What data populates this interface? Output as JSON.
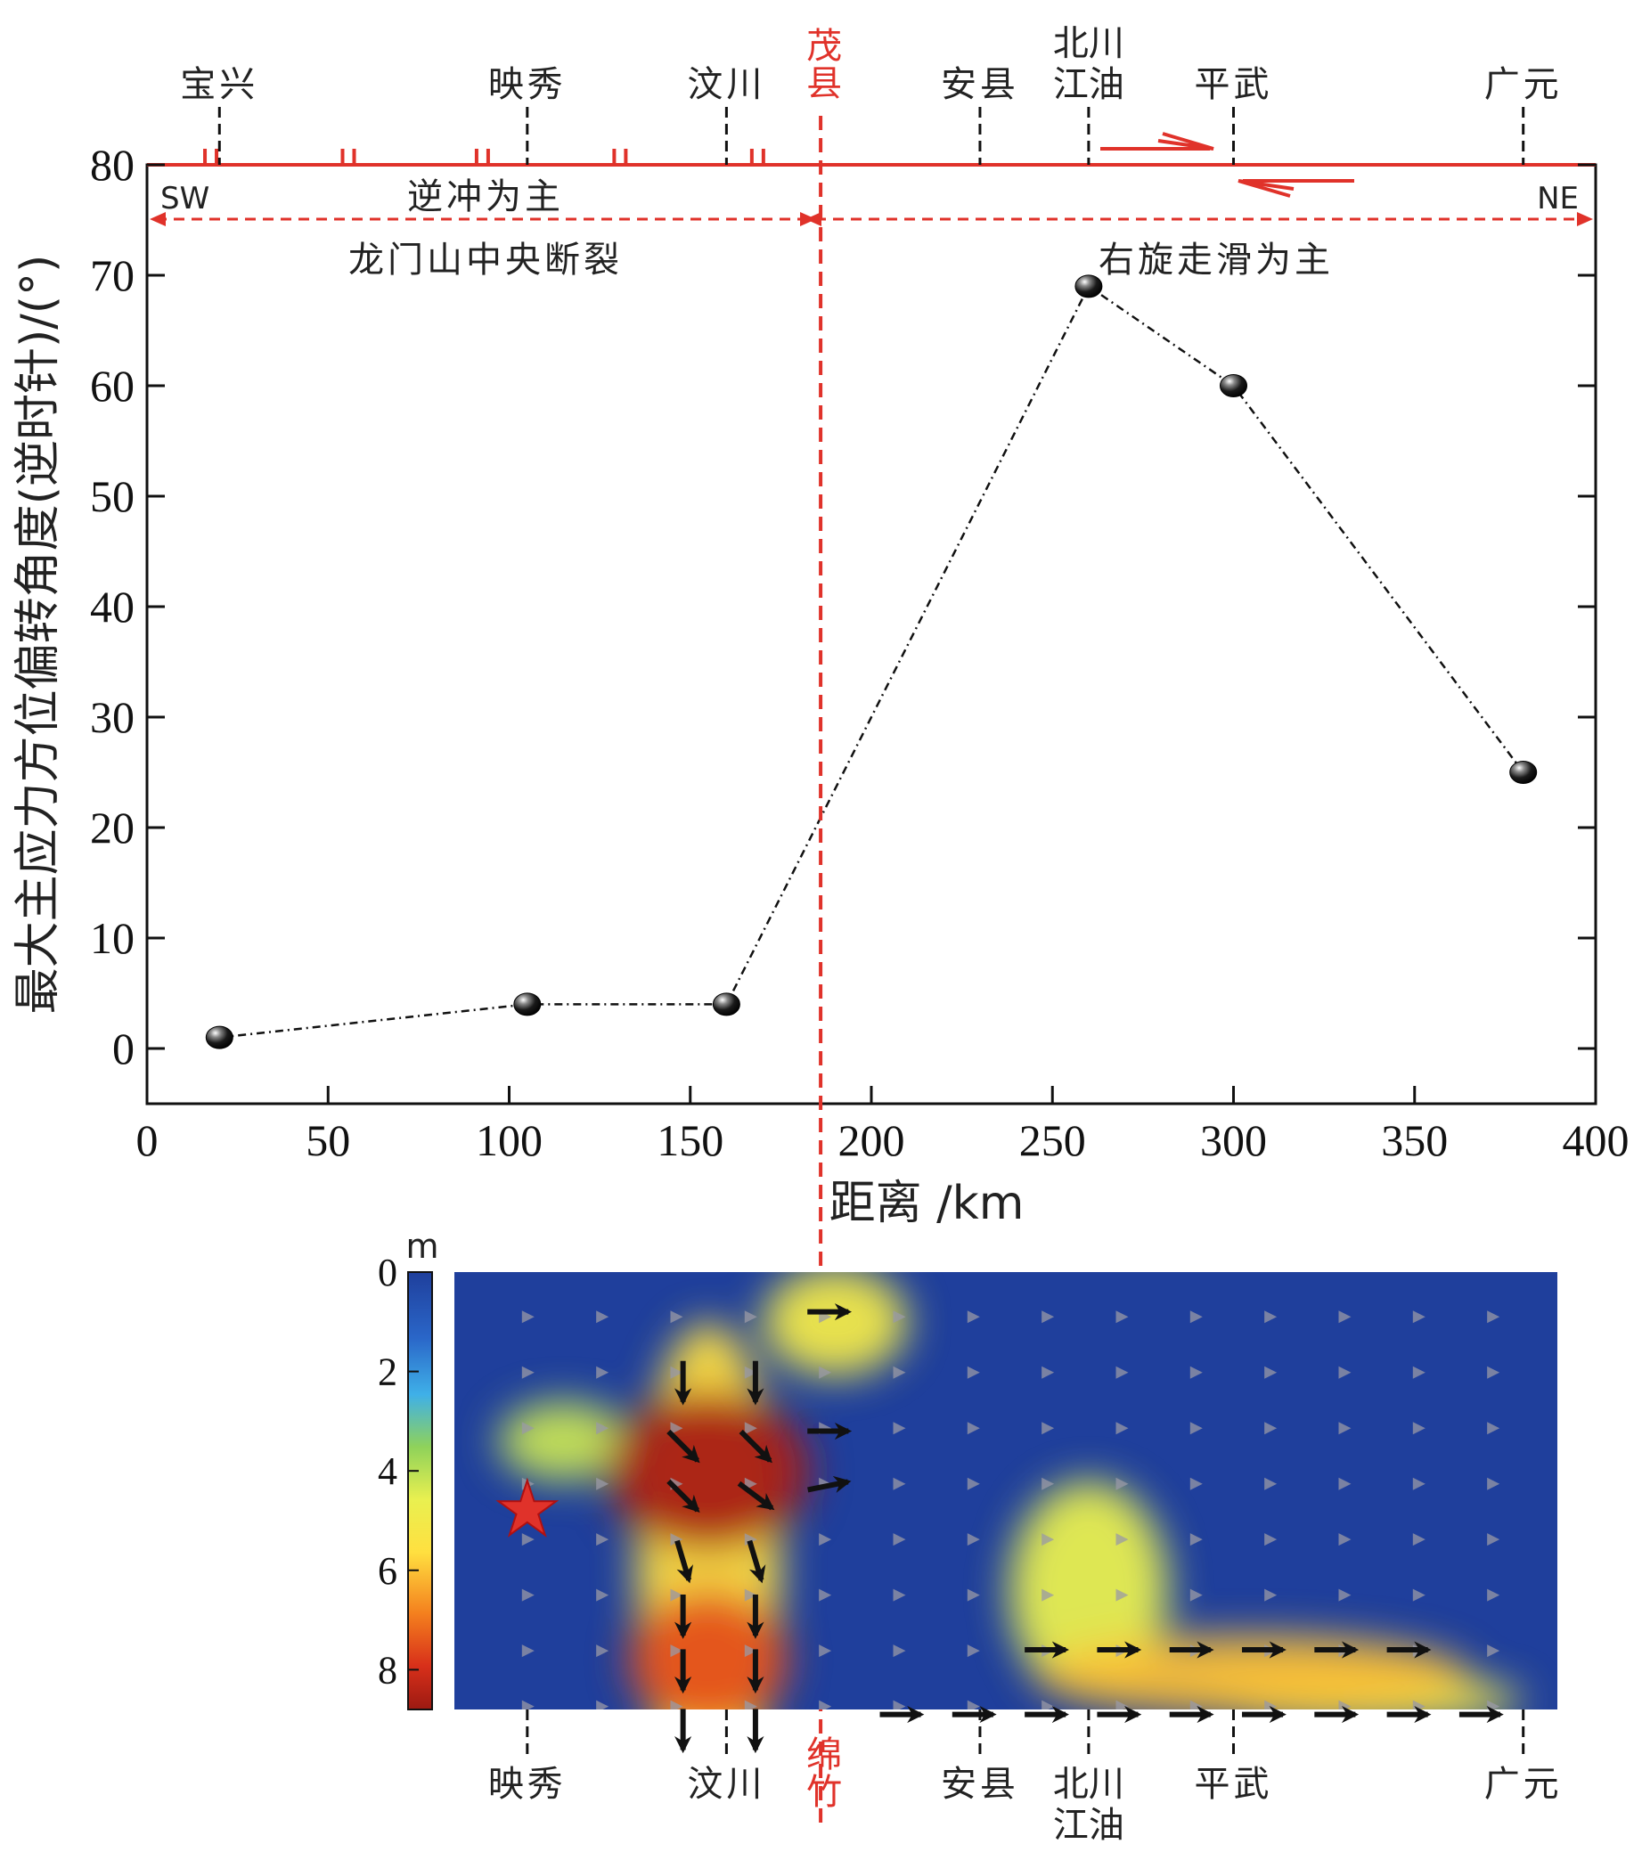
{
  "chart_data": [
    {
      "type": "line",
      "xlabel": "距离 /km",
      "ylabel": "最大主应力方位偏转角度(逆时针)/(°)",
      "xlim": [
        0,
        400
      ],
      "ylim": [
        -5,
        80
      ],
      "xticks": [
        0,
        50,
        100,
        150,
        200,
        250,
        300,
        350,
        400
      ],
      "yticks": [
        0,
        10,
        20,
        30,
        40,
        50,
        60,
        70,
        80
      ],
      "grid": false,
      "series": [
        {
          "values": [
            [
              20,
              1
            ],
            [
              105,
              4
            ],
            [
              160,
              4
            ],
            [
              260,
              69
            ],
            [
              300,
              60
            ],
            [
              380,
              25
            ]
          ]
        }
      ],
      "top_locations": [
        {
          "label": "宝兴",
          "x": 20
        },
        {
          "label": "映秀",
          "x": 105
        },
        {
          "label": "汶川",
          "x": 160
        },
        {
          "label": "茂县",
          "x": 186,
          "highlight": true
        },
        {
          "label": "安县",
          "x": 230
        },
        {
          "label": "北川江油",
          "x": 260
        },
        {
          "label": "平武",
          "x": 300
        },
        {
          "label": "广元",
          "x": 380
        }
      ],
      "divider_x": 186,
      "fault_ticks_x": [
        16,
        54,
        91,
        129,
        167
      ],
      "annotations": {
        "sw": "SW",
        "ne": "NE",
        "thrust": "逆冲为主",
        "fault": "龙门山中央断裂",
        "strike_slip": "右旋走滑为主"
      },
      "colors": {
        "accent": "#e0322a",
        "line": "#111111"
      }
    },
    {
      "type": "heatmap",
      "colorbar_unit": "m",
      "colorbar_ticks": [
        0,
        2,
        4,
        6,
        8
      ],
      "colorbar_range": [
        0,
        8.8
      ],
      "depth_range": [
        0,
        8.8
      ],
      "epicenter_x": 105,
      "epicenter_depth": 4.8,
      "bottom_locations": [
        {
          "label": "映秀",
          "x": 105
        },
        {
          "label": "汶川",
          "x": 160
        },
        {
          "label": "绵竹",
          "x": 186,
          "highlight": true
        },
        {
          "label": "安县",
          "x": 230
        },
        {
          "label": "北川江油",
          "x": 260
        },
        {
          "label": "平武",
          "x": 300
        },
        {
          "label": "广元",
          "x": 380
        }
      ],
      "slip_blobs": [
        {
          "x": 155,
          "depth": 4,
          "rx": 28,
          "rdepth": 1.6,
          "slip": 8.6
        },
        {
          "x": 155,
          "depth": 7.8,
          "rx": 22,
          "rdepth": 1.4,
          "slip": 7.4
        },
        {
          "x": 155,
          "depth": 5.8,
          "rx": 20,
          "rdepth": 4.8,
          "slip": 5.6
        },
        {
          "x": 190,
          "depth": 1,
          "rx": 20,
          "rdepth": 1.1,
          "slip": 5.0
        },
        {
          "x": 115,
          "depth": 3.4,
          "rx": 18,
          "rdepth": 0.8,
          "slip": 4.2
        },
        {
          "x": 260,
          "depth": 6.4,
          "rx": 22,
          "rdepth": 2.2,
          "slip": 4.6
        },
        {
          "x": 305,
          "depth": 8.1,
          "rx": 60,
          "rdepth": 0.8,
          "slip": 6.0
        },
        {
          "x": 335,
          "depth": 8.6,
          "rx": 45,
          "rdepth": 0.5,
          "slip": 5.0
        }
      ],
      "large_vectors": [
        {
          "x": 148,
          "depth": 2.2,
          "dx": 0,
          "ddepth": 1
        },
        {
          "x": 168,
          "depth": 2.2,
          "dx": 0,
          "ddepth": 1
        },
        {
          "x": 148,
          "depth": 3.5,
          "dx": 0.7,
          "ddepth": 0.7
        },
        {
          "x": 168,
          "depth": 3.5,
          "dx": 0.7,
          "ddepth": 0.7
        },
        {
          "x": 148,
          "depth": 4.5,
          "dx": 0.7,
          "ddepth": 0.7
        },
        {
          "x": 168,
          "depth": 4.5,
          "dx": 0.8,
          "ddepth": 0.6
        },
        {
          "x": 148,
          "depth": 5.8,
          "dx": 0.3,
          "ddepth": 1
        },
        {
          "x": 168,
          "depth": 5.8,
          "dx": 0.3,
          "ddepth": 1
        },
        {
          "x": 148,
          "depth": 6.9,
          "dx": 0,
          "ddepth": 1
        },
        {
          "x": 168,
          "depth": 6.9,
          "dx": 0,
          "ddepth": 1
        },
        {
          "x": 148,
          "depth": 8.0,
          "dx": 0,
          "ddepth": 1
        },
        {
          "x": 168,
          "depth": 8.0,
          "dx": 0,
          "ddepth": 1
        },
        {
          "x": 148,
          "depth": 9.2,
          "dx": 0,
          "ddepth": 1
        },
        {
          "x": 168,
          "depth": 9.2,
          "dx": 0,
          "ddepth": 1
        },
        {
          "x": 188,
          "depth": 0.8,
          "dx": 1,
          "ddepth": 0
        },
        {
          "x": 188,
          "depth": 3.2,
          "dx": 1,
          "ddepth": 0
        },
        {
          "x": 188,
          "depth": 4.3,
          "dx": 1,
          "ddepth": -0.2
        },
        {
          "x": 248,
          "depth": 7.6,
          "dx": 1,
          "ddepth": 0
        },
        {
          "x": 268,
          "depth": 7.6,
          "dx": 1,
          "ddepth": 0
        },
        {
          "x": 288,
          "depth": 7.6,
          "dx": 1,
          "ddepth": 0
        },
        {
          "x": 308,
          "depth": 7.6,
          "dx": 1,
          "ddepth": 0
        },
        {
          "x": 328,
          "depth": 7.6,
          "dx": 1,
          "ddepth": 0
        },
        {
          "x": 348,
          "depth": 7.6,
          "dx": 1,
          "ddepth": 0
        },
        {
          "x": 208,
          "depth": 8.9,
          "dx": 1,
          "ddepth": 0
        },
        {
          "x": 228,
          "depth": 8.9,
          "dx": 1,
          "ddepth": 0
        },
        {
          "x": 248,
          "depth": 8.9,
          "dx": 1,
          "ddepth": 0
        },
        {
          "x": 268,
          "depth": 8.9,
          "dx": 1,
          "ddepth": 0
        },
        {
          "x": 288,
          "depth": 8.9,
          "dx": 1,
          "ddepth": 0
        },
        {
          "x": 308,
          "depth": 8.9,
          "dx": 1,
          "ddepth": 0
        },
        {
          "x": 328,
          "depth": 8.9,
          "dx": 1,
          "ddepth": 0
        },
        {
          "x": 348,
          "depth": 8.9,
          "dx": 1,
          "ddepth": 0
        },
        {
          "x": 368,
          "depth": 8.9,
          "dx": 1,
          "ddepth": 0
        }
      ],
      "colors": {
        "low": "#1f3f9c",
        "mid": "#ffff50",
        "high": "#c81c10"
      }
    }
  ]
}
